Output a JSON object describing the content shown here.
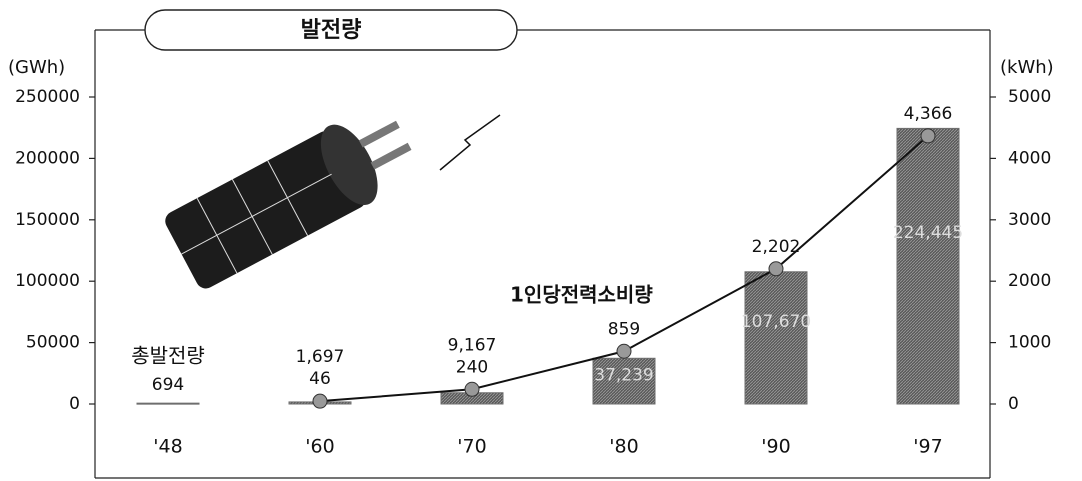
{
  "chart_data": {
    "type": "bar-line",
    "title": "발전량",
    "y_label": "(GWh)",
    "y2_label": "(kWh)",
    "categories": [
      "'48",
      "'60",
      "'70",
      "'80",
      "'90",
      "'97"
    ],
    "series": [
      {
        "name": "총발전량",
        "type": "bar",
        "color": "#6e6e6e",
        "values": [
          694,
          1697,
          9167,
          37239,
          107670,
          224445
        ],
        "value_labels": [
          "694",
          "1,697",
          "9,167",
          "37,239",
          "107,670",
          "224,445"
        ]
      },
      {
        "name": "1인당전력소비량",
        "type": "line",
        "axis": "y2",
        "color": "#111111",
        "values": [
          null,
          46,
          240,
          859,
          2202,
          4366
        ],
        "value_labels": [
          null,
          "46",
          "240",
          "859",
          "2,202",
          "4,366"
        ]
      }
    ],
    "ylim": [
      0,
      250000
    ],
    "yticks": [
      0,
      50000,
      100000,
      150000,
      200000,
      250000
    ],
    "y2lim": [
      0,
      5000
    ],
    "y2ticks": [
      0,
      1000,
      2000,
      3000,
      4000,
      5000
    ]
  }
}
